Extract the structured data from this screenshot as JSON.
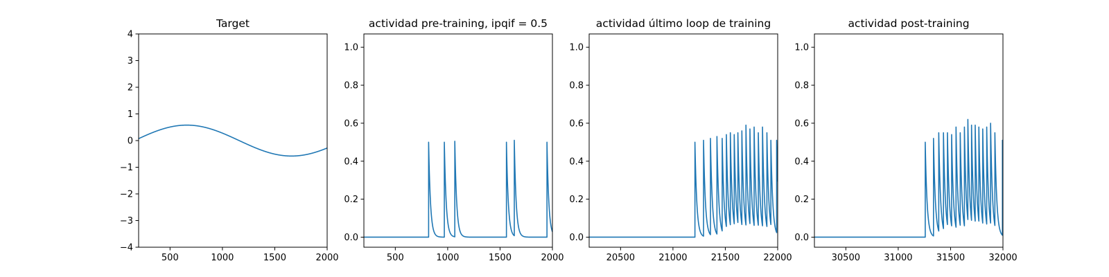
{
  "style": {
    "line_color": "#1f77b4",
    "background": "#ffffff"
  },
  "chart_data": [
    {
      "type": "line",
      "title": "Target",
      "xlim": [
        200,
        2000
      ],
      "ylim": [
        -4,
        4
      ],
      "xticks": [
        500,
        1000,
        1500,
        2000
      ],
      "yticks": [
        -4,
        -3,
        -2,
        -1,
        0,
        1,
        2,
        3,
        4
      ],
      "xtick_labels": [
        "500",
        "1000",
        "1500",
        "2000"
      ],
      "ytick_labels": [
        "−4",
        "−3",
        "−2",
        "−1",
        "0",
        "1",
        "2",
        "3",
        "4"
      ],
      "series": [
        {
          "kind": "sine",
          "x_range": [
            200,
            2000
          ],
          "amplitude": 0.58,
          "period": 2000,
          "phase_x": 160
        }
      ]
    },
    {
      "type": "line",
      "title": "actividad pre-training, ipqif = 0.5",
      "xlim": [
        200,
        2000
      ],
      "ylim": [
        -0.053,
        1.07
      ],
      "xticks": [
        500,
        1000,
        1500,
        2000
      ],
      "yticks": [
        0.0,
        0.2,
        0.4,
        0.6,
        0.8,
        1.0
      ],
      "xtick_labels": [
        "500",
        "1000",
        "1500",
        "2000"
      ],
      "ytick_labels": [
        "0.0",
        "0.2",
        "0.4",
        "0.6",
        "0.8",
        "1.0"
      ],
      "series": [
        {
          "kind": "spike_train",
          "x_range": [
            200,
            2000
          ],
          "decay_tau": 18,
          "spike_times": [
            818,
            968,
            1068,
            1561,
            1636,
            1948
          ],
          "spike_peaks": [
            0.5,
            0.5,
            0.505,
            0.5,
            0.51,
            0.5
          ]
        }
      ]
    },
    {
      "type": "line",
      "title": "actividad último loop de training",
      "xlim": [
        20200,
        22000
      ],
      "ylim": [
        -0.053,
        1.07
      ],
      "xticks": [
        20500,
        21000,
        21500,
        22000
      ],
      "yticks": [
        0.0,
        0.2,
        0.4,
        0.6,
        0.8,
        1.0
      ],
      "xtick_labels": [
        "20500",
        "21000",
        "21500",
        "22000"
      ],
      "ytick_labels": [
        "0.0",
        "0.2",
        "0.4",
        "0.6",
        "0.8",
        "1.0"
      ],
      "series": [
        {
          "kind": "spike_train",
          "x_range": [
            20200,
            22000
          ],
          "decay_tau": 18,
          "spike_times": [
            21210,
            21292,
            21358,
            21420,
            21470,
            21510,
            21548,
            21585,
            21620,
            21658,
            21697,
            21735,
            21775,
            21815,
            21855,
            21897,
            21935,
            21990
          ],
          "spike_peaks": [
            0.5,
            0.51,
            0.52,
            0.53,
            0.52,
            0.54,
            0.55,
            0.54,
            0.55,
            0.56,
            0.59,
            0.57,
            0.58,
            0.55,
            0.58,
            0.55,
            0.51,
            0.51
          ]
        }
      ]
    },
    {
      "type": "line",
      "title": "actividad post-training",
      "xlim": [
        30200,
        32000
      ],
      "ylim": [
        -0.053,
        1.07
      ],
      "xticks": [
        30500,
        31000,
        31500,
        32000
      ],
      "yticks": [
        0.0,
        0.2,
        0.4,
        0.6,
        0.8,
        1.0
      ],
      "xtick_labels": [
        "30500",
        "31000",
        "31500",
        "32000"
      ],
      "ytick_labels": [
        "0.0",
        "0.2",
        "0.4",
        "0.6",
        "0.8",
        "1.0"
      ],
      "series": [
        {
          "kind": "spike_train",
          "x_range": [
            30200,
            32000
          ],
          "decay_tau": 18,
          "spike_times": [
            31258,
            31337,
            31387,
            31432,
            31470,
            31510,
            31552,
            31592,
            31632,
            31665,
            31700,
            31735,
            31770,
            31807,
            31845,
            31882,
            31923,
            31995
          ],
          "spike_peaks": [
            0.5,
            0.52,
            0.55,
            0.55,
            0.55,
            0.54,
            0.58,
            0.55,
            0.58,
            0.62,
            0.59,
            0.59,
            0.58,
            0.57,
            0.58,
            0.6,
            0.55,
            0.51
          ]
        }
      ]
    }
  ]
}
